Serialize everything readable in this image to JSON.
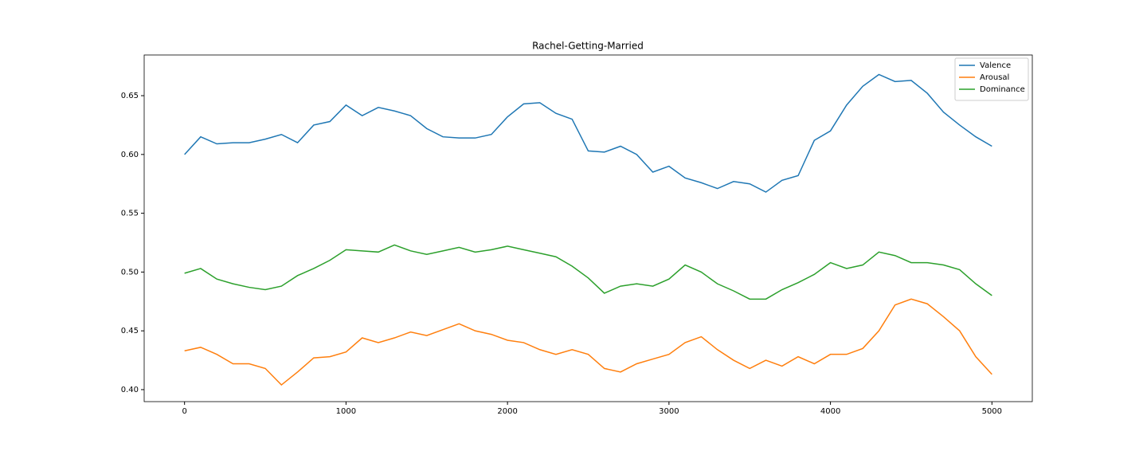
{
  "chart_data": {
    "type": "line",
    "title": "Rachel-Getting-Married",
    "x": [
      0,
      100,
      200,
      300,
      400,
      500,
      600,
      700,
      800,
      900,
      1000,
      1100,
      1200,
      1300,
      1400,
      1500,
      1600,
      1700,
      1800,
      1900,
      2000,
      2100,
      2200,
      2300,
      2400,
      2500,
      2600,
      2700,
      2800,
      2900,
      3000,
      3100,
      3200,
      3300,
      3400,
      3500,
      3600,
      3700,
      3800,
      3900,
      4000,
      4100,
      4200,
      4300,
      4400,
      4500,
      4600,
      4700,
      4800,
      4900,
      5000
    ],
    "series": [
      {
        "name": "Valence",
        "color": "#1f77b4",
        "values": [
          0.6,
          0.615,
          0.609,
          0.61,
          0.61,
          0.613,
          0.617,
          0.61,
          0.625,
          0.628,
          0.642,
          0.633,
          0.64,
          0.637,
          0.633,
          0.622,
          0.615,
          0.614,
          0.614,
          0.617,
          0.632,
          0.643,
          0.644,
          0.635,
          0.63,
          0.603,
          0.602,
          0.607,
          0.6,
          0.585,
          0.59,
          0.58,
          0.576,
          0.571,
          0.577,
          0.575,
          0.568,
          0.578,
          0.582,
          0.612,
          0.62,
          0.642,
          0.658,
          0.668,
          0.662,
          0.663,
          0.652,
          0.636,
          0.625,
          0.615,
          0.607
        ]
      },
      {
        "name": "Arousal",
        "color": "#ff7f0e",
        "values": [
          0.433,
          0.436,
          0.43,
          0.422,
          0.422,
          0.418,
          0.404,
          0.415,
          0.427,
          0.428,
          0.432,
          0.444,
          0.44,
          0.444,
          0.449,
          0.446,
          0.451,
          0.456,
          0.45,
          0.447,
          0.442,
          0.44,
          0.434,
          0.43,
          0.434,
          0.43,
          0.418,
          0.415,
          0.422,
          0.426,
          0.43,
          0.44,
          0.445,
          0.434,
          0.425,
          0.418,
          0.425,
          0.42,
          0.428,
          0.422,
          0.43,
          0.43,
          0.435,
          0.45,
          0.472,
          0.477,
          0.473,
          0.462,
          0.45,
          0.428,
          0.413
        ]
      },
      {
        "name": "Dominance",
        "color": "#2ca02c",
        "values": [
          0.499,
          0.503,
          0.494,
          0.49,
          0.487,
          0.485,
          0.488,
          0.497,
          0.503,
          0.51,
          0.519,
          0.518,
          0.517,
          0.523,
          0.518,
          0.515,
          0.518,
          0.521,
          0.517,
          0.519,
          0.522,
          0.519,
          0.516,
          0.513,
          0.505,
          0.495,
          0.482,
          0.488,
          0.49,
          0.488,
          0.494,
          0.506,
          0.5,
          0.49,
          0.484,
          0.477,
          0.477,
          0.485,
          0.491,
          0.498,
          0.508,
          0.503,
          0.506,
          0.517,
          0.514,
          0.508,
          0.508,
          0.506,
          0.502,
          0.49,
          0.48
        ]
      }
    ],
    "xlim": [
      -250,
      5250
    ],
    "xticks": [
      0,
      1000,
      2000,
      3000,
      4000,
      5000
    ],
    "ylim": [
      0.3898,
      0.6846
    ],
    "yticks": [
      {
        "value": 0.4,
        "label": "0.40"
      },
      {
        "value": 0.45,
        "label": "0.45"
      },
      {
        "value": 0.5,
        "label": "0.50"
      },
      {
        "value": 0.55,
        "label": "0.55"
      },
      {
        "value": 0.6,
        "label": "0.60"
      },
      {
        "value": 0.65,
        "label": "0.65"
      }
    ],
    "legend": "upper right"
  }
}
